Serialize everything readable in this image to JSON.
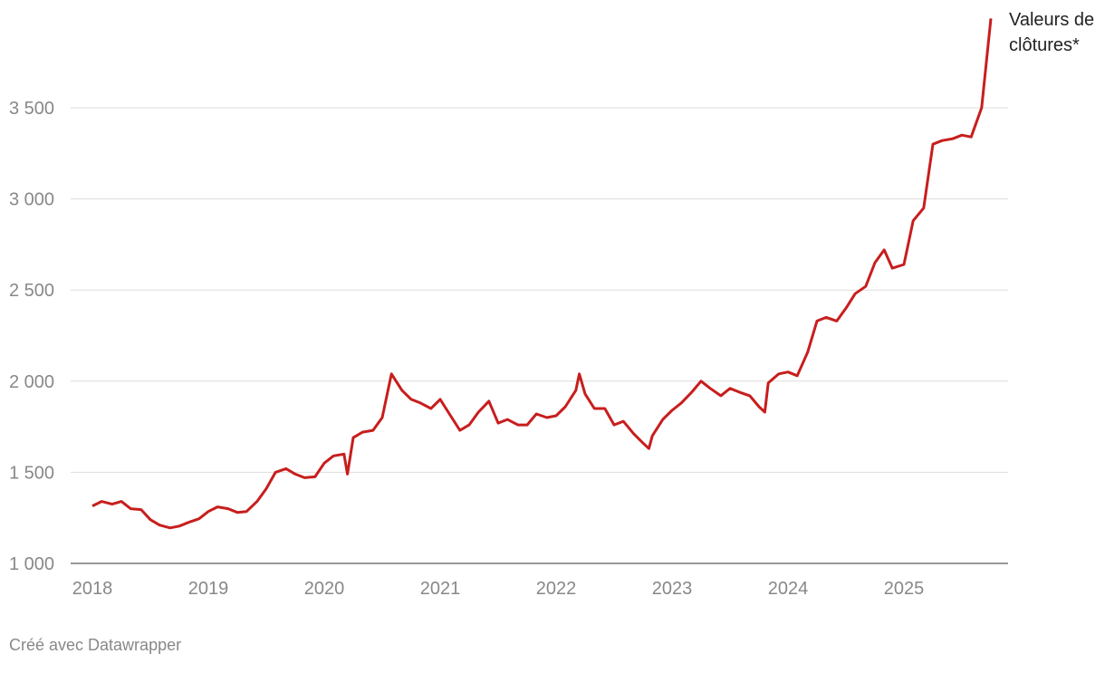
{
  "chart_data": {
    "type": "line",
    "annotation": "Valeurs de clôtures*",
    "footer": "Créé avec Datawrapper",
    "series": [
      {
        "name": "Valeurs de clôtures*",
        "color": "#c71e1d",
        "x": [
          2018.0,
          2018.08,
          2018.17,
          2018.25,
          2018.33,
          2018.42,
          2018.5,
          2018.58,
          2018.67,
          2018.75,
          2018.83,
          2018.92,
          2019.0,
          2019.08,
          2019.17,
          2019.25,
          2019.33,
          2019.42,
          2019.5,
          2019.58,
          2019.67,
          2019.75,
          2019.83,
          2019.92,
          2020.0,
          2020.08,
          2020.17,
          2020.2,
          2020.25,
          2020.33,
          2020.42,
          2020.5,
          2020.58,
          2020.67,
          2020.75,
          2020.83,
          2020.92,
          2021.0,
          2021.08,
          2021.17,
          2021.25,
          2021.33,
          2021.42,
          2021.5,
          2021.58,
          2021.67,
          2021.75,
          2021.83,
          2021.92,
          2022.0,
          2022.08,
          2022.17,
          2022.2,
          2022.25,
          2022.33,
          2022.42,
          2022.5,
          2022.58,
          2022.67,
          2022.75,
          2022.8,
          2022.83,
          2022.92,
          2023.0,
          2023.08,
          2023.17,
          2023.25,
          2023.33,
          2023.42,
          2023.5,
          2023.58,
          2023.67,
          2023.75,
          2023.8,
          2023.83,
          2023.92,
          2024.0,
          2024.08,
          2024.17,
          2024.25,
          2024.33,
          2024.42,
          2024.5,
          2024.58,
          2024.67,
          2024.75,
          2024.83,
          2024.9,
          2025.0,
          2025.08,
          2025.17,
          2025.25,
          2025.33,
          2025.42,
          2025.5,
          2025.58,
          2025.67,
          2025.75
        ],
        "values": [
          1315,
          1340,
          1325,
          1340,
          1300,
          1295,
          1240,
          1210,
          1195,
          1205,
          1225,
          1245,
          1285,
          1310,
          1300,
          1280,
          1285,
          1340,
          1410,
          1500,
          1520,
          1490,
          1470,
          1475,
          1550,
          1590,
          1600,
          1490,
          1690,
          1720,
          1730,
          1800,
          2040,
          1950,
          1900,
          1880,
          1850,
          1900,
          1820,
          1730,
          1760,
          1830,
          1890,
          1770,
          1790,
          1760,
          1760,
          1820,
          1800,
          1810,
          1860,
          1950,
          2040,
          1930,
          1850,
          1850,
          1760,
          1780,
          1710,
          1660,
          1630,
          1700,
          1790,
          1840,
          1880,
          1940,
          2000,
          1960,
          1920,
          1960,
          1940,
          1920,
          1860,
          1830,
          1990,
          2040,
          2050,
          2030,
          2160,
          2330,
          2350,
          2330,
          2400,
          2480,
          2520,
          2650,
          2720,
          2620,
          2640,
          2880,
          2950,
          3300,
          3320,
          3330,
          3350,
          3340,
          3500,
          3990
        ]
      }
    ],
    "xlim": [
      2018.0,
      2025.75
    ],
    "xticks": [
      2018,
      2019,
      2020,
      2021,
      2022,
      2023,
      2024,
      2025
    ],
    "ylim": [
      1000,
      4000
    ],
    "yticks": [
      {
        "value": 1000,
        "label": "1 000"
      },
      {
        "value": 1500,
        "label": "1 500"
      },
      {
        "value": 2000,
        "label": "2 000"
      },
      {
        "value": 2500,
        "label": "2 500"
      },
      {
        "value": 3000,
        "label": "3 000"
      },
      {
        "value": 3500,
        "label": "3 500"
      }
    ],
    "grid": true
  }
}
